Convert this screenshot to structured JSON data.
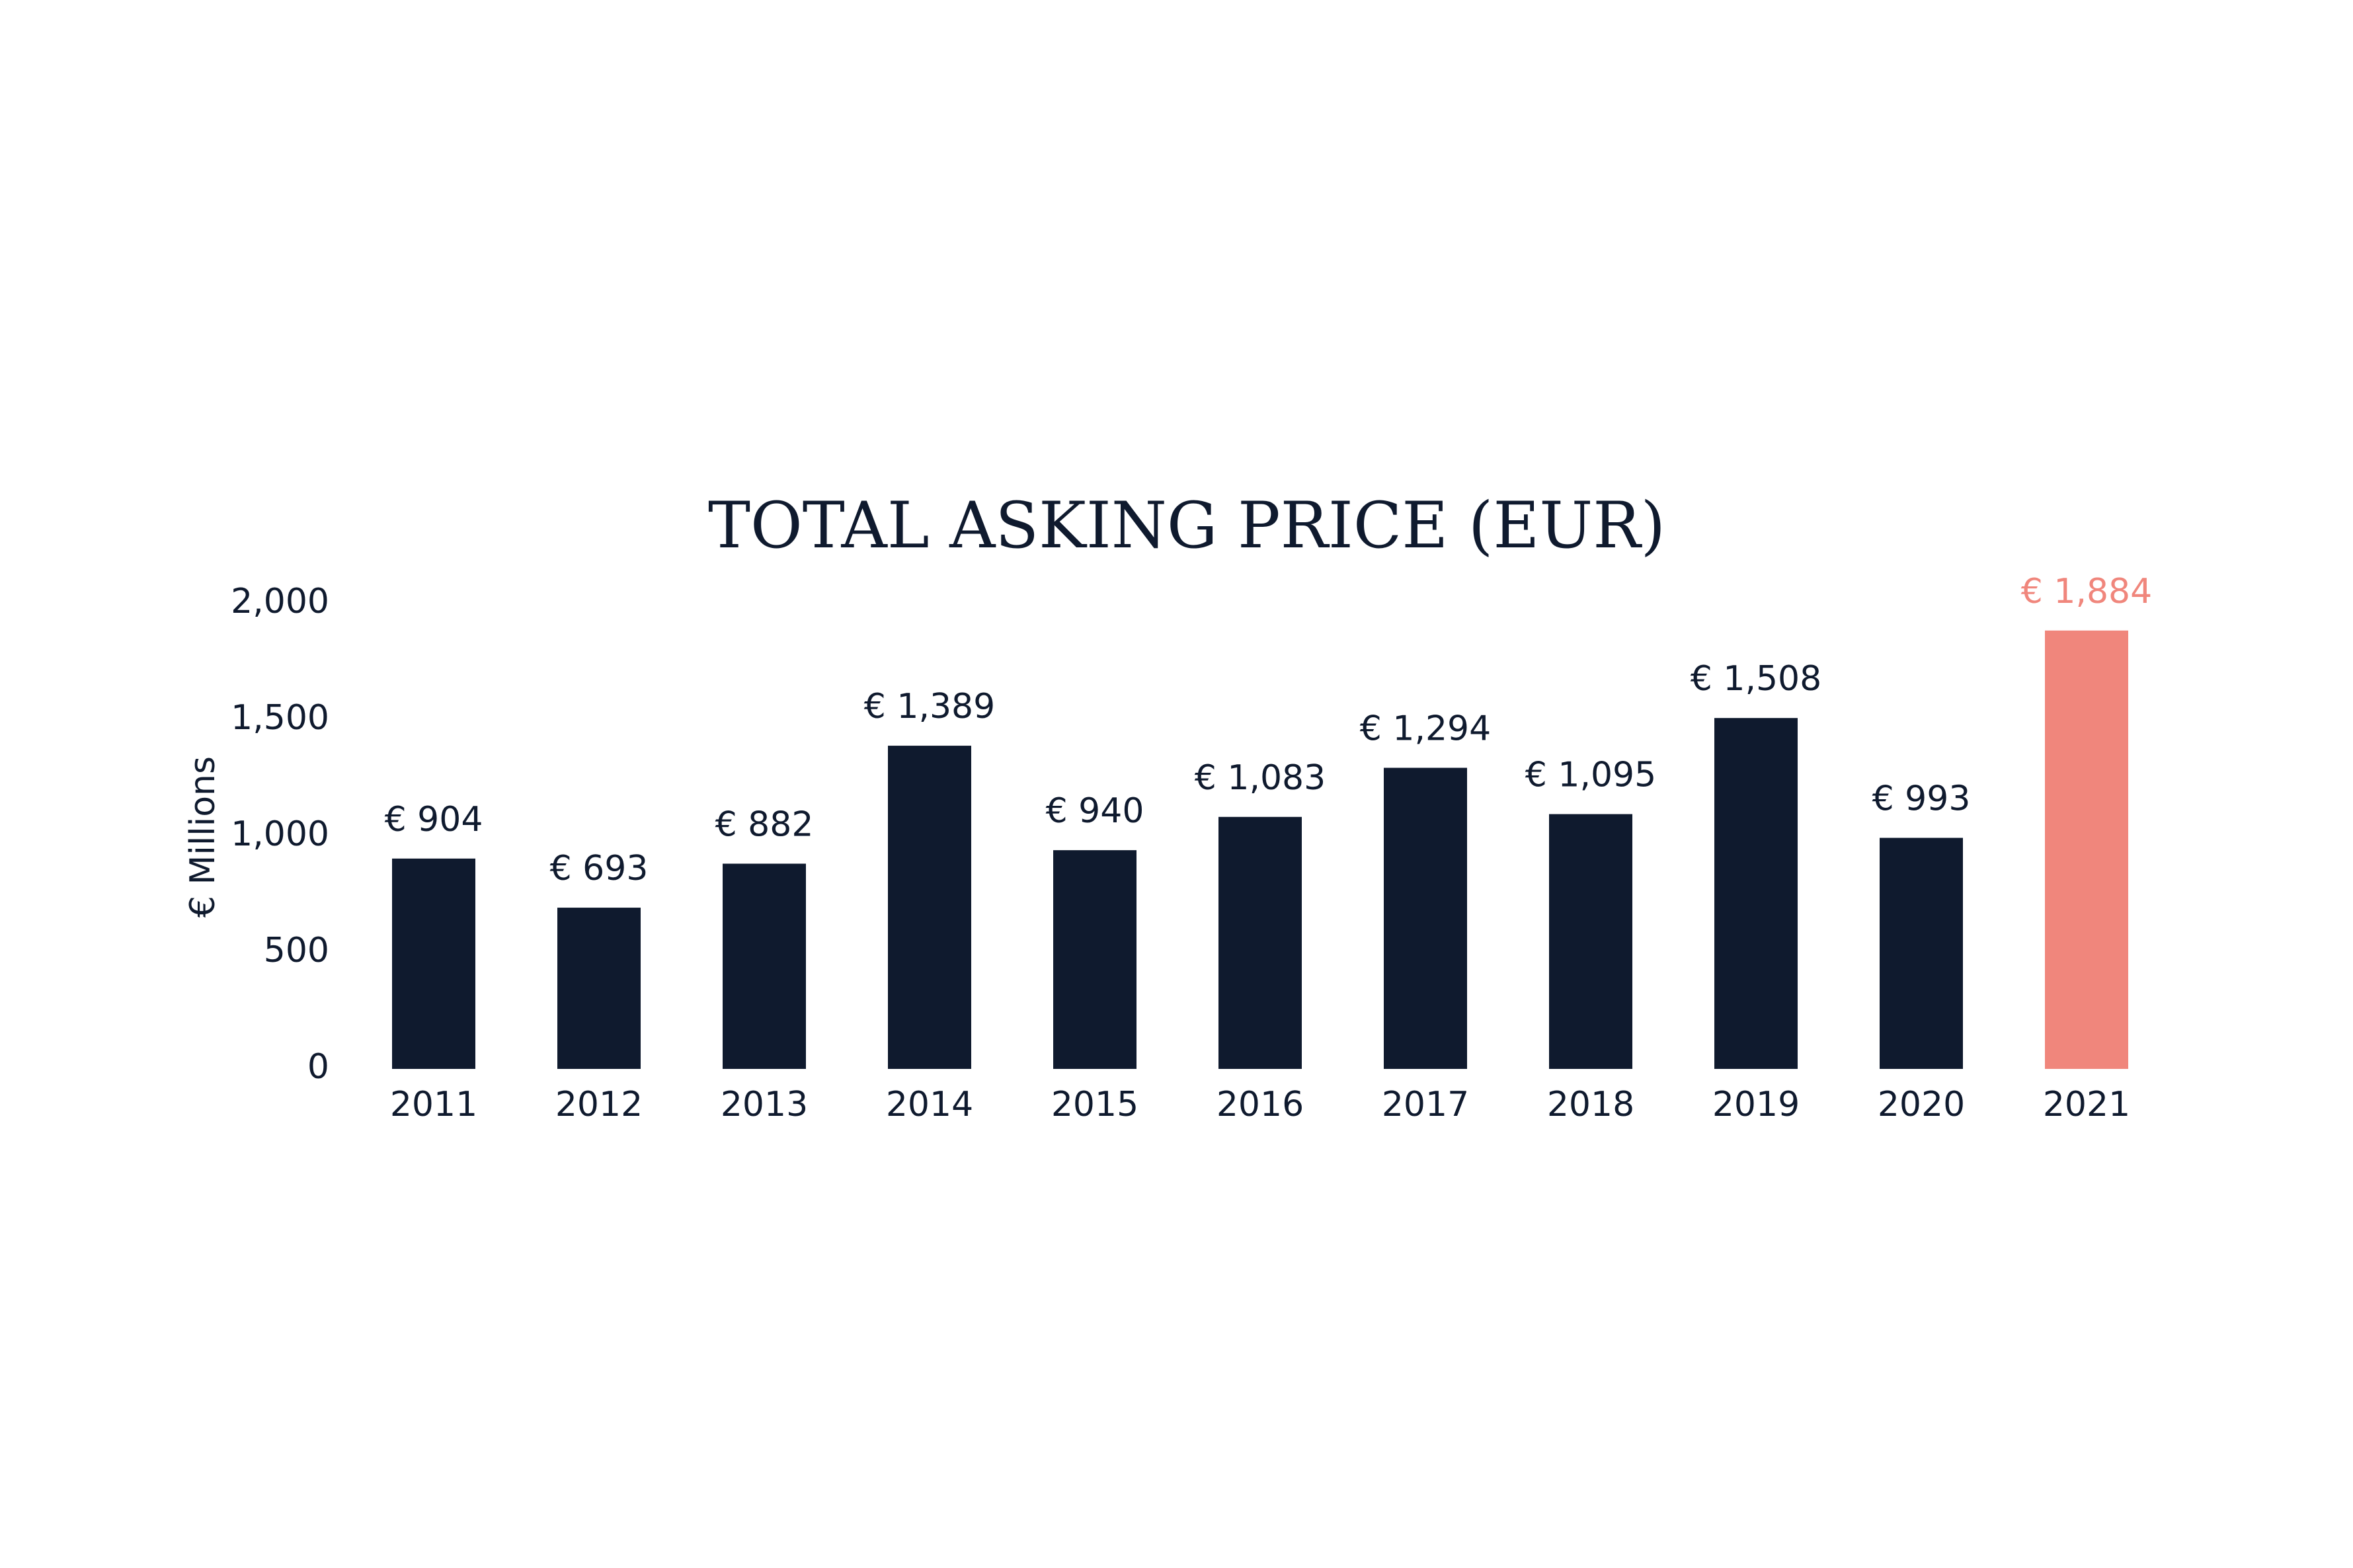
{
  "chart_data": {
    "type": "bar",
    "title": "TOTAL ASKING PRICE (EUR)",
    "y_label": "€ Millions",
    "categories": [
      "2011",
      "2012",
      "2013",
      "2014",
      "2015",
      "2016",
      "2017",
      "2018",
      "2019",
      "2020",
      "2021"
    ],
    "values": [
      904,
      693,
      882,
      1389,
      940,
      1083,
      1294,
      1095,
      1508,
      993,
      1884
    ],
    "value_labels": [
      "€ 904",
      "€ 693",
      "€ 882",
      "€ 1,389",
      "€ 940",
      "€ 1,083",
      "€ 1,294",
      "€ 1,095",
      "€ 1,508",
      "€ 993",
      "€ 1,884"
    ],
    "colors": [
      "#0f1a2e",
      "#0f1a2e",
      "#0f1a2e",
      "#0f1a2e",
      "#0f1a2e",
      "#0f1a2e",
      "#0f1a2e",
      "#0f1a2e",
      "#0f1a2e",
      "#0f1a2e",
      "#f0867c"
    ],
    "ylim": [
      0,
      2000
    ],
    "yticks": [
      0,
      500,
      {
        "value": 1000,
        "label": "1,000"
      },
      {
        "value": 1500,
        "label": "1,500"
      },
      {
        "value": 2000,
        "label": "2,000"
      }
    ],
    "grid": false
  }
}
